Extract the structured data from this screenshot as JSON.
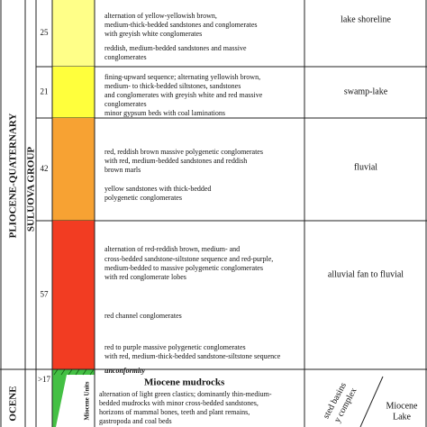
{
  "column": {
    "period": "PLIOCENE-QUATERNARY",
    "group": "SULUOVA GROUP",
    "lower_period": "OCENE",
    "units": [
      {
        "thickness": "25",
        "color": "#ffff88",
        "environment": "lake shoreline",
        "description": [
          "alternation of yellow-yellowish brown,",
          "medium-thick-bedded sandstones and conglomerates",
          "with greyish white conglomerates",
          "reddish, medium-bedded sandstones and massive",
          "conglomerates"
        ]
      },
      {
        "thickness": "21",
        "color": "#ffff3c",
        "environment": "swamp-lake",
        "description": [
          "fining-upward sequence; alternating yellowish brown,",
          "medium- to thick-bedded siltstones, sandstones",
          "and conglomerates with greyish white and red massive",
          "conglomerates",
          "minor gypsum beds with coal laminations"
        ]
      },
      {
        "thickness": "42",
        "color": "#f7a233",
        "environment": "fluvial",
        "description": [
          "red, reddish brown massive polygenetic conglomerates",
          "with red, medium-bedded sandstones and reddish",
          "brown marls",
          "yellow sandstones with thick-bedded",
          "polygenetic conglomerates"
        ]
      },
      {
        "thickness": "57",
        "color": "#f23c22",
        "environment": "alluvial fan to fluvial",
        "description": [
          "alternation of red-reddish brown, medium- and",
          "cross-bedded sandstone-siltstone sequence and red-purple,",
          "medium-bedded to massive polygenetic conglomerates",
          "with red conglomerate lobes",
          "red channel conglomerates",
          "red to purple massive polygenetic conglomerates",
          "with red, medium-thick-bedded sandstone-siltstone sequence"
        ]
      }
    ],
    "miocene": {
      "thickness": ">17",
      "unit_label": "Miocene Units",
      "contact": "unconformity",
      "title": "Miocene mudrocks",
      "description": [
        "alternation of light green clastics; dominantly thin-medium-",
        "bedded mudrocks with minor cross-bedded sandstones,",
        "horizons of mammal bones, teeth and plant remains,",
        "gastropoda and coal beds"
      ],
      "environment_a": [
        "sted basins",
        "y complex"
      ],
      "environment_b": [
        "Miocene",
        "Lake"
      ]
    }
  }
}
